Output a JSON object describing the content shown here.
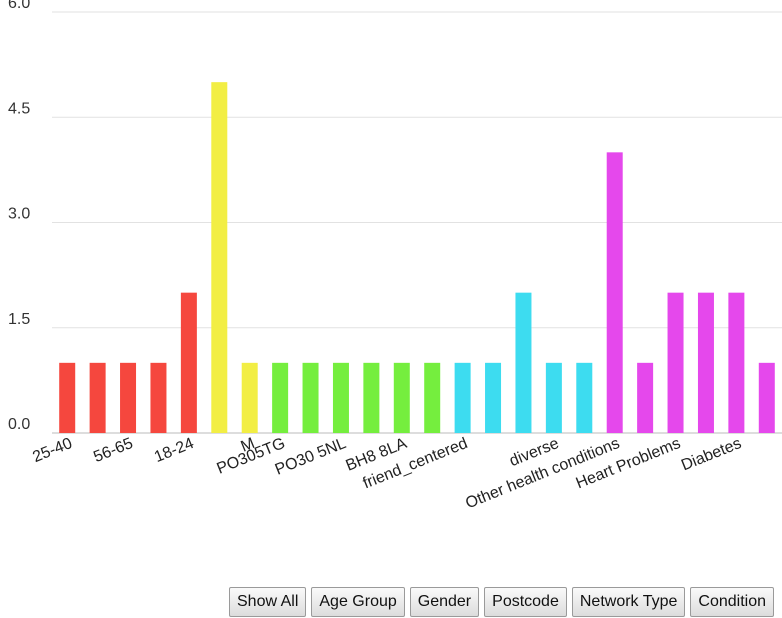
{
  "chart_data": {
    "type": "bar",
    "title": "",
    "xlabel": "",
    "ylabel": "",
    "ylim": [
      0,
      6
    ],
    "yticks": [
      "0.0",
      "1.5",
      "3.0",
      "4.5",
      "6.0"
    ],
    "grid": true,
    "legend": "none",
    "group_colors": {
      "Age Group": "#f5473e",
      "Gender": "#f2ee44",
      "Postcode": "#75ee3e",
      "Network Type": "#3ddcf0",
      "Condition": "#e548ec"
    },
    "bars": [
      {
        "label": "25-40",
        "value": 1,
        "group": "Age Group",
        "show_label": true
      },
      {
        "label": "",
        "value": 1,
        "group": "Age Group",
        "show_label": false
      },
      {
        "label": "56-65",
        "value": 1,
        "group": "Age Group",
        "show_label": true
      },
      {
        "label": "",
        "value": 1,
        "group": "Age Group",
        "show_label": false
      },
      {
        "label": "18-24",
        "value": 2,
        "group": "Age Group",
        "show_label": true
      },
      {
        "label": "",
        "value": 5,
        "group": "Gender",
        "show_label": false
      },
      {
        "label": "M",
        "value": 1,
        "group": "Gender",
        "show_label": true
      },
      {
        "label": "PO305TG",
        "value": 1,
        "group": "Postcode",
        "show_label": true
      },
      {
        "label": "",
        "value": 1,
        "group": "Postcode",
        "show_label": false
      },
      {
        "label": "PO30 5NL",
        "value": 1,
        "group": "Postcode",
        "show_label": true
      },
      {
        "label": "",
        "value": 1,
        "group": "Postcode",
        "show_label": false
      },
      {
        "label": "BH8 8LA",
        "value": 1,
        "group": "Postcode",
        "show_label": true
      },
      {
        "label": "",
        "value": 1,
        "group": "Postcode",
        "show_label": false
      },
      {
        "label": "friend_centered",
        "value": 1,
        "group": "Network Type",
        "show_label": true
      },
      {
        "label": "",
        "value": 1,
        "group": "Network Type",
        "show_label": false
      },
      {
        "label": "",
        "value": 2,
        "group": "Network Type",
        "show_label": false
      },
      {
        "label": "diverse",
        "value": 1,
        "group": "Network Type",
        "show_label": true
      },
      {
        "label": "",
        "value": 1,
        "group": "Network Type",
        "show_label": false
      },
      {
        "label": "Other health conditions",
        "value": 4,
        "group": "Condition",
        "show_label": true
      },
      {
        "label": "",
        "value": 1,
        "group": "Condition",
        "show_label": false
      },
      {
        "label": "Heart Problems",
        "value": 2,
        "group": "Condition",
        "show_label": true
      },
      {
        "label": "",
        "value": 2,
        "group": "Condition",
        "show_label": false
      },
      {
        "label": "Diabetes",
        "value": 2,
        "group": "Condition",
        "show_label": true
      },
      {
        "label": "",
        "value": 1,
        "group": "Condition",
        "show_label": false
      }
    ]
  },
  "buttons": {
    "show_all": "Show All",
    "age_group": "Age Group",
    "gender": "Gender",
    "postcode": "Postcode",
    "network_type": "Network Type",
    "condition": "Condition"
  }
}
